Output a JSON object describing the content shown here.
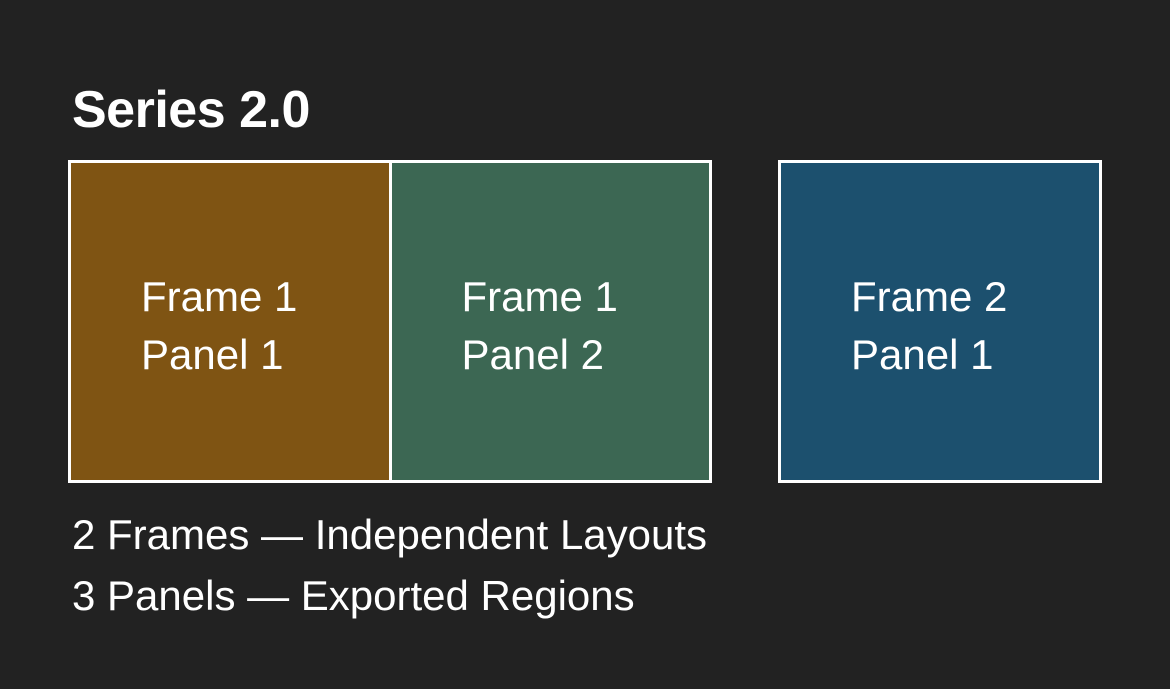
{
  "title": "Series 2.0",
  "colors": {
    "background": "#222222",
    "border": "#ffffff",
    "text": "#ffffff",
    "frame1_panel1": "#7f5413",
    "frame1_panel2": "#3c6753",
    "frame2_panel1": "#1c506e"
  },
  "frames": [
    {
      "panels": [
        {
          "frame_label": "Frame 1",
          "panel_label": "Panel 1"
        },
        {
          "frame_label": "Frame 1",
          "panel_label": "Panel 2"
        }
      ]
    },
    {
      "panels": [
        {
          "frame_label": "Frame 2",
          "panel_label": "Panel 1"
        }
      ]
    }
  ],
  "captions": [
    "2 Frames — Independent Layouts",
    "3 Panels — Exported Regions"
  ]
}
